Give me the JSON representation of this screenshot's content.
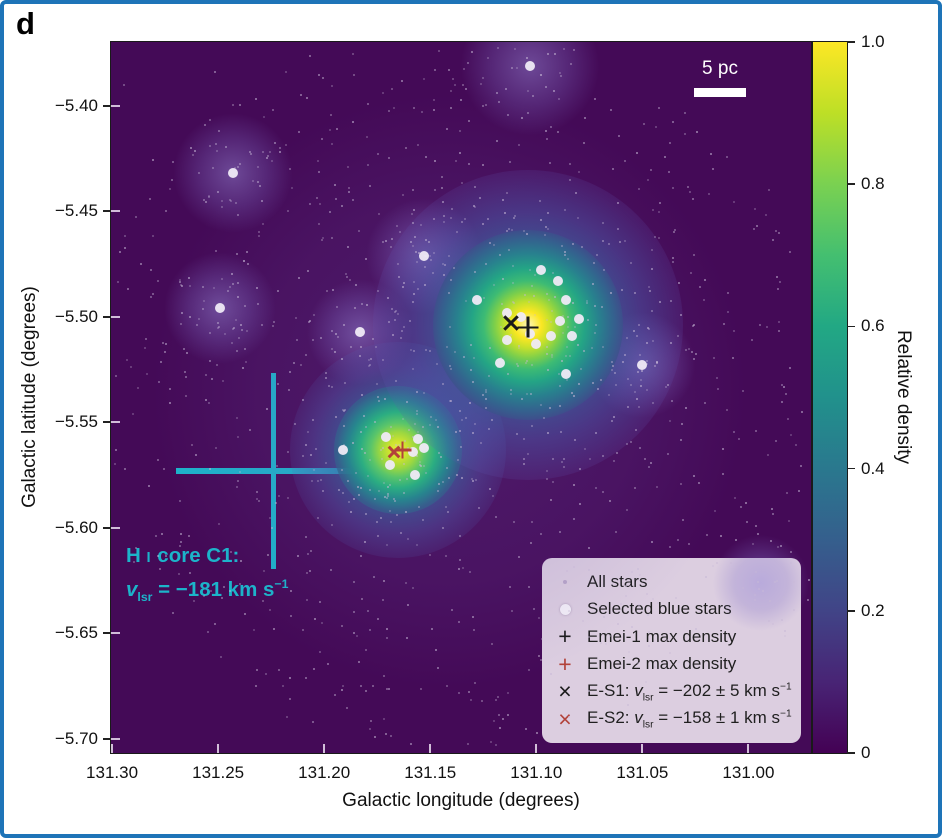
{
  "panel_label": "d",
  "colors": {
    "border_blue": "#1e74b8",
    "accent_cyan": "#1cb4ca",
    "marker_black": "#1a1a1a",
    "marker_red": "#b2423a",
    "legend_bg": "rgba(233,223,235,0.92)",
    "scale_bar_white": "#ffffff",
    "background_min_density": "#440a57",
    "peak_density": "#fde725"
  },
  "chart_data": {
    "type": "heatmap",
    "title": "",
    "xlabel": "Galactic longitude (degrees)",
    "ylabel": "Galactic latitude (degrees)",
    "xlim": [
      131.3005,
      130.9705
    ],
    "ylim": [
      -5.3697,
      -5.7067
    ],
    "colormap": "viridis",
    "x_ticks": [
      {
        "v": 131.3,
        "label": "131.30"
      },
      {
        "v": 131.25,
        "label": "131.25"
      },
      {
        "v": 131.2,
        "label": "131.20"
      },
      {
        "v": 131.15,
        "label": "131.15"
      },
      {
        "v": 131.1,
        "label": "131.10"
      },
      {
        "v": 131.05,
        "label": "131.05"
      },
      {
        "v": 131.0,
        "label": "131.00"
      }
    ],
    "y_ticks": [
      {
        "v": -5.4,
        "label": "−5.40"
      },
      {
        "v": -5.45,
        "label": "−5.45"
      },
      {
        "v": -5.5,
        "label": "−5.50"
      },
      {
        "v": -5.55,
        "label": "−5.55"
      },
      {
        "v": -5.6,
        "label": "−5.60"
      },
      {
        "v": -5.65,
        "label": "−5.65"
      },
      {
        "v": -5.7,
        "label": "−5.70"
      }
    ],
    "colorbar": {
      "label": "Relative density",
      "range": [
        0,
        1
      ],
      "ticks": [
        {
          "v": 1.0,
          "label": "1.0"
        },
        {
          "v": 0.8,
          "label": "0.8"
        },
        {
          "v": 0.6,
          "label": "0.6"
        },
        {
          "v": 0.4,
          "label": "0.4"
        },
        {
          "v": 0.2,
          "label": "0.2"
        },
        {
          "v": 0.0,
          "label": "0"
        }
      ]
    },
    "scale_bar": {
      "label": "5 pc",
      "length_deg": 0.0245
    },
    "hi_core": {
      "l": 131.224,
      "b": -5.573,
      "half_l_deg": 0.0458,
      "half_b_deg": 0.0465,
      "label": {
        "h": "H ",
        "i": "I",
        "rest": " core C1:",
        "v": "v",
        "sub": "lsr",
        "eq": " = −181 km s",
        "sup": "−1"
      }
    },
    "density_halos": [
      {
        "kind": "ambient",
        "l": 131.141,
        "b": -5.535,
        "r": 300
      },
      {
        "kind": "faint",
        "l": 131.243,
        "b": -5.432,
        "r": 62
      },
      {
        "kind": "faint",
        "l": 131.249,
        "b": -5.496,
        "r": 58
      },
      {
        "kind": "faint",
        "l": 131.153,
        "b": -5.471,
        "r": 60
      },
      {
        "kind": "faint",
        "l": 131.183,
        "b": -5.507,
        "r": 55
      },
      {
        "kind": "faint",
        "l": 131.103,
        "b": -5.381,
        "r": 72
      },
      {
        "kind": "faint",
        "l": 131.05,
        "b": -5.523,
        "r": 55
      },
      {
        "kind": "faint",
        "l": 130.994,
        "b": -5.626,
        "r": 50
      },
      {
        "kind": "glow2",
        "l": 131.165,
        "b": -5.563,
        "r": 108
      },
      {
        "kind": "core2",
        "l": 131.165,
        "b": -5.563,
        "r": 64
      },
      {
        "kind": "glow1",
        "l": 131.104,
        "b": -5.504,
        "r": 155
      },
      {
        "kind": "core1",
        "l": 131.104,
        "b": -5.504,
        "r": 95
      }
    ],
    "all_stars_field": {
      "count": 730,
      "seed": 11,
      "center_l": 131.141,
      "center_b": -5.535,
      "radius_px": 365
    },
    "selected_blue_stars": [
      {
        "l": 131.098,
        "b": -5.478
      },
      {
        "l": 131.09,
        "b": -5.483
      },
      {
        "l": 131.086,
        "b": -5.492
      },
      {
        "l": 131.08,
        "b": -5.501
      },
      {
        "l": 131.089,
        "b": -5.502
      },
      {
        "l": 131.083,
        "b": -5.509
      },
      {
        "l": 131.093,
        "b": -5.509
      },
      {
        "l": 131.1,
        "b": -5.513
      },
      {
        "l": 131.114,
        "b": -5.498
      },
      {
        "l": 131.114,
        "b": -5.511
      },
      {
        "l": 131.128,
        "b": -5.492
      },
      {
        "l": 131.117,
        "b": -5.522
      },
      {
        "l": 131.086,
        "b": -5.527
      },
      {
        "l": 131.103,
        "b": -5.508
      },
      {
        "l": 131.107,
        "b": -5.5
      },
      {
        "l": 131.171,
        "b": -5.557
      },
      {
        "l": 131.156,
        "b": -5.558
      },
      {
        "l": 131.153,
        "b": -5.562
      },
      {
        "l": 131.158,
        "b": -5.564
      },
      {
        "l": 131.169,
        "b": -5.57
      },
      {
        "l": 131.157,
        "b": -5.575
      },
      {
        "l": 131.191,
        "b": -5.563
      },
      {
        "l": 131.243,
        "b": -5.432
      },
      {
        "l": 131.249,
        "b": -5.496
      },
      {
        "l": 131.153,
        "b": -5.471
      },
      {
        "l": 131.183,
        "b": -5.507
      },
      {
        "l": 131.103,
        "b": -5.381
      },
      {
        "l": 131.05,
        "b": -5.523
      }
    ],
    "markers": [
      {
        "name": "emei1-max-density",
        "symbol": "plus",
        "color": "black",
        "l": 131.104,
        "b": -5.505,
        "size": 21
      },
      {
        "name": "es1-position",
        "symbol": "x",
        "color": "black",
        "l": 131.112,
        "b": -5.503,
        "size": 19
      },
      {
        "name": "emei2-max-density",
        "symbol": "plus",
        "color": "red",
        "l": 131.163,
        "b": -5.563,
        "size": 17
      },
      {
        "name": "es2-position",
        "symbol": "x",
        "color": "red",
        "l": 131.167,
        "b": -5.564,
        "size": 15
      }
    ]
  },
  "legend": {
    "items": [
      {
        "marker": "dot-tiny",
        "label": "All stars"
      },
      {
        "marker": "dot-white",
        "label": "Selected blue stars"
      },
      {
        "marker": "plus-black",
        "glyph": "+",
        "label": "Emei-1 max density"
      },
      {
        "marker": "plus-red",
        "glyph": "+",
        "label": "Emei-2 max density"
      },
      {
        "marker": "x-black",
        "glyph": "×",
        "prefix": "E-S1: ",
        "v": "v",
        "sub": "lsr",
        "mid": " = −202 ± 5 km s",
        "sup": "−1"
      },
      {
        "marker": "x-red",
        "glyph": "×",
        "prefix": "E-S2: ",
        "v": "v",
        "sub": "lsr",
        "mid": " = −158 ± 1 km s",
        "sup": "−1"
      }
    ]
  }
}
